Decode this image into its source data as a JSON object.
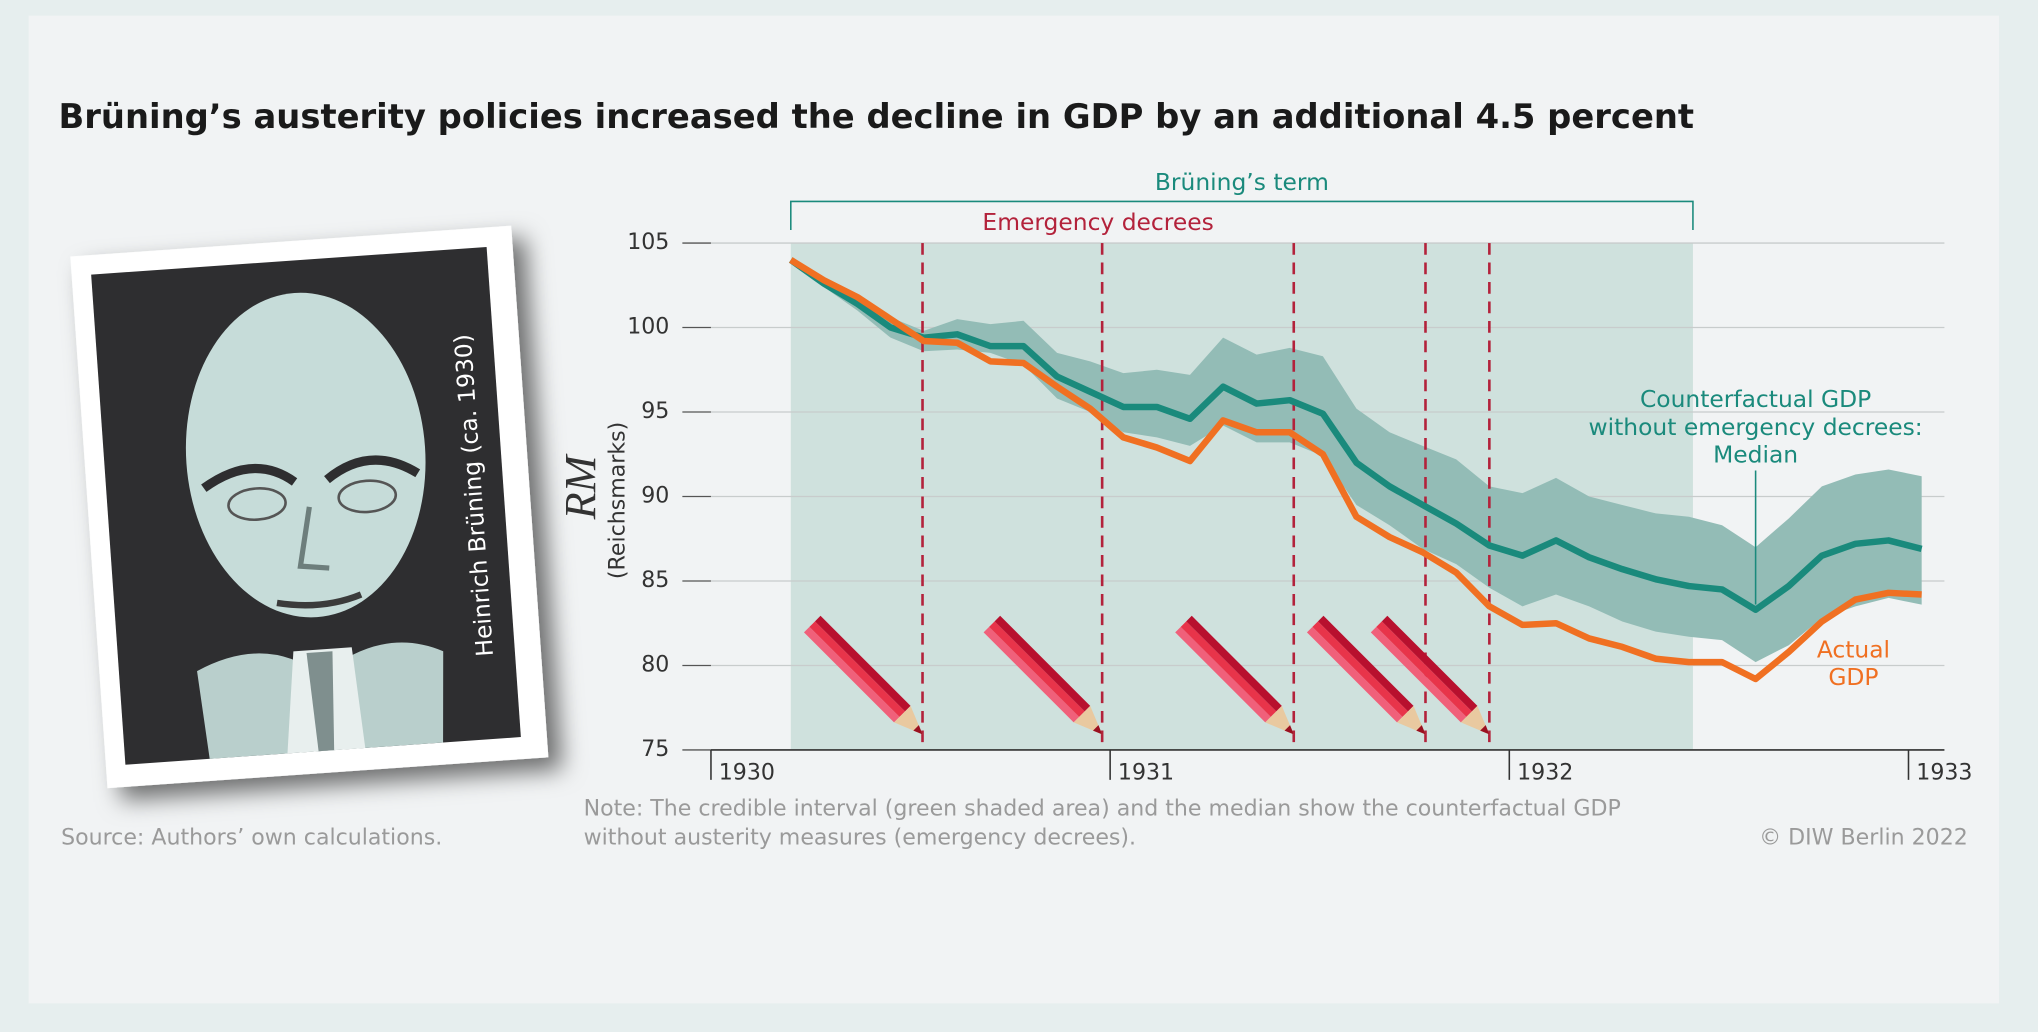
{
  "chart_data": {
    "type": "line",
    "title": "Brüning’s austerity policies increased the decline in GDP by an additional 4.5 percent",
    "ylabel_symbol": "RM",
    "ylabel": "(Reichsmarks)",
    "x": [
      1930.2,
      1930.283,
      1930.367,
      1930.45,
      1930.533,
      1930.617,
      1930.7,
      1930.783,
      1930.867,
      1930.95,
      1931.033,
      1931.117,
      1931.2,
      1931.283,
      1931.367,
      1931.45,
      1931.533,
      1931.617,
      1931.7,
      1931.783,
      1931.867,
      1931.95,
      1932.033,
      1932.117,
      1932.2,
      1932.283,
      1932.367,
      1932.45,
      1932.533,
      1932.617,
      1932.7,
      1932.783,
      1932.867,
      1932.95,
      1933.033
    ],
    "series": [
      {
        "name": [
          "Counterfactual GDP",
          "without emergency decrees:",
          "Median"
        ],
        "color": "#1a8a7c",
        "values": [
          104,
          102.6,
          101.4,
          100.0,
          99.4,
          99.6,
          98.9,
          98.9,
          97.1,
          96.2,
          95.3,
          95.3,
          94.6,
          96.5,
          95.5,
          95.7,
          94.9,
          92.0,
          90.6,
          89.5,
          88.4,
          87.1,
          86.5,
          87.4,
          86.4,
          85.7,
          85.1,
          84.7,
          84.5,
          83.3,
          84.7,
          86.5,
          87.2,
          87.4,
          86.9
        ]
      },
      {
        "name": [
          "Actual",
          "GDP"
        ],
        "color": "#f07022",
        "values": [
          104,
          102.8,
          101.8,
          100.5,
          99.2,
          99.1,
          98.0,
          97.9,
          96.5,
          95.2,
          93.5,
          92.9,
          92.1,
          94.5,
          93.8,
          93.8,
          92.5,
          88.8,
          87.6,
          86.7,
          85.5,
          83.5,
          82.4,
          82.5,
          81.6,
          81.1,
          80.4,
          80.2,
          80.2,
          79.2,
          80.8,
          82.6,
          83.9,
          84.3,
          84.2
        ]
      }
    ],
    "band": {
      "color": "#93bcb6",
      "upper": [
        104,
        102.8,
        101.8,
        100.6,
        99.8,
        100.5,
        100.2,
        100.4,
        98.5,
        98.0,
        97.3,
        97.5,
        97.2,
        99.4,
        98.4,
        98.8,
        98.3,
        95.2,
        93.8,
        93.0,
        92.2,
        90.6,
        90.2,
        91.1,
        90.0,
        89.5,
        89.0,
        88.8,
        88.3,
        87.0,
        88.7,
        90.6,
        91.3,
        91.6,
        91.2
      ],
      "lower": [
        104,
        102.4,
        101.0,
        99.4,
        98.6,
        98.7,
        98.5,
        97.8,
        95.8,
        95.0,
        93.8,
        93.5,
        93.0,
        94.2,
        93.2,
        93.2,
        92.4,
        89.5,
        88.3,
        86.9,
        86.0,
        84.6,
        83.5,
        84.2,
        83.5,
        82.6,
        82.0,
        81.7,
        81.5,
        80.2,
        81.2,
        82.8,
        83.5,
        84.0,
        83.6
      ]
    },
    "term": {
      "label": "Brüning’s term",
      "start": 1930.2,
      "end": 1932.46,
      "color": "#cfe1dd"
    },
    "decrees": {
      "label": "Emergency decrees",
      "color": "#b3223b",
      "x": [
        1930.53,
        1930.98,
        1931.46,
        1931.79,
        1931.95
      ]
    },
    "xlim": [
      1930,
      1933.09
    ],
    "xticks": [
      1930,
      1931,
      1932,
      1933
    ],
    "ylim": [
      75,
      105
    ],
    "yticks": [
      75,
      80,
      85,
      90,
      95,
      100,
      105
    ],
    "grid": true,
    "photo_caption": "Heinrich Brüning (ca. 1930)",
    "source": "Source: Authors’ own calculations.",
    "note": [
      "Note: The credible interval (green shaded area) and the median show the counterfactual GDP",
      "without austerity measures (emergency decrees)."
    ],
    "copyright": "© DIW Berlin 2022"
  }
}
